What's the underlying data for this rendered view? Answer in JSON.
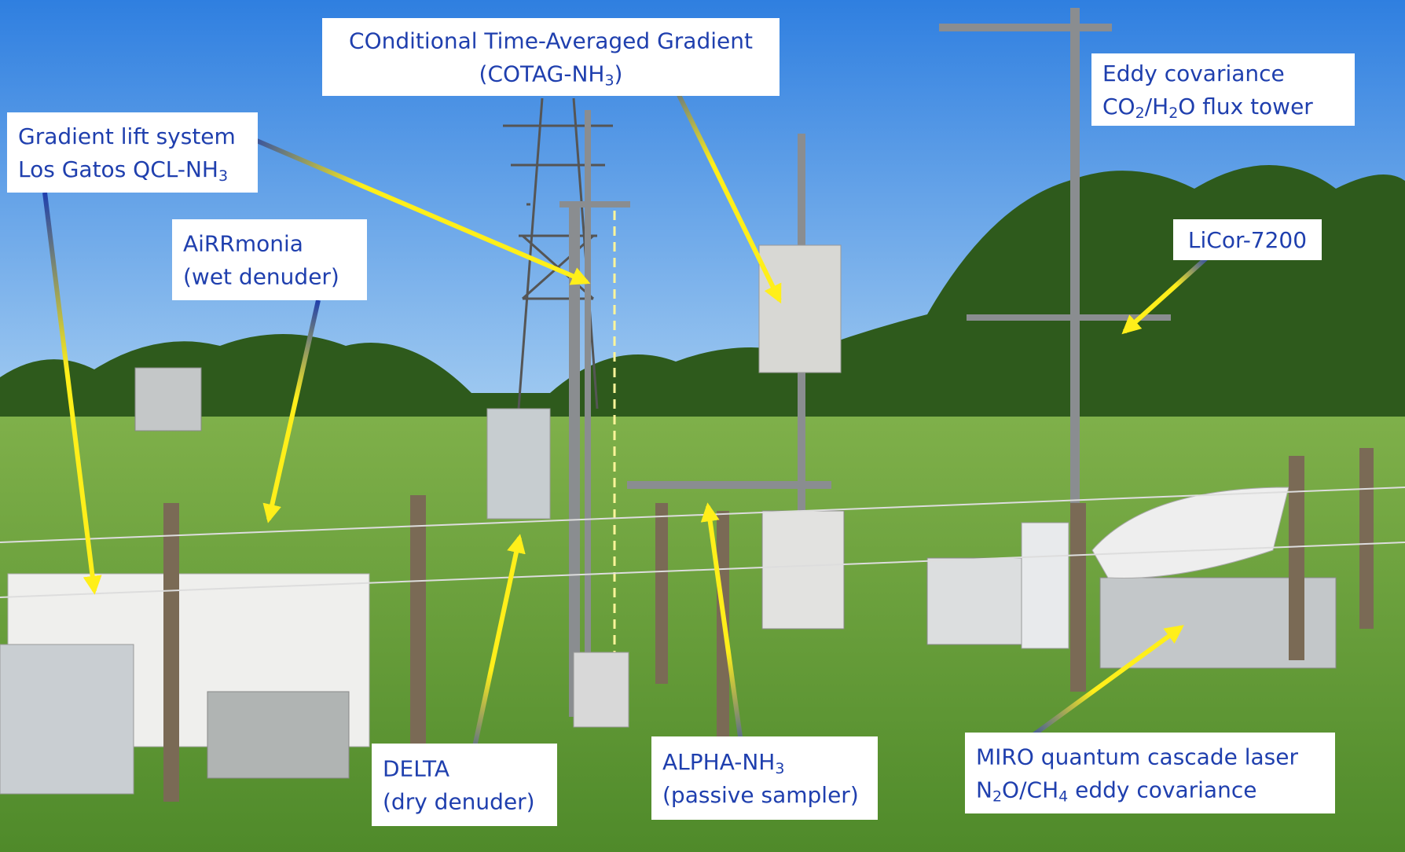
{
  "labels": [
    {
      "lines": [
        [
          "COnditional Time-Averaged Gradient"
        ],
        [
          "(COTAG-NH",
          "3",
          ")"
        ]
      ]
    },
    {
      "lines": [
        [
          "Eddy covariance"
        ],
        [
          "CO",
          "2",
          "/H",
          "2",
          "O flux tower"
        ]
      ]
    },
    {
      "lines": [
        [
          "Gradient lift system"
        ],
        [
          "Los Gatos QCL-NH",
          "3",
          ""
        ]
      ]
    },
    {
      "lines": [
        [
          "AiRRmonia"
        ],
        [
          "(wet denuder)"
        ]
      ]
    },
    {
      "lines": [
        [
          "LiCor-7200"
        ]
      ]
    },
    {
      "lines": [
        [
          "DELTA"
        ],
        [
          "(dry denuder)"
        ]
      ]
    },
    {
      "lines": [
        [
          "ALPHA-NH",
          "3",
          ""
        ],
        [
          "(passive sampler)"
        ]
      ]
    },
    {
      "lines": [
        [
          "MIRO quantum cascade laser"
        ],
        [
          "N",
          "2",
          "O/CH",
          "4",
          " eddy covariance"
        ]
      ]
    }
  ]
}
